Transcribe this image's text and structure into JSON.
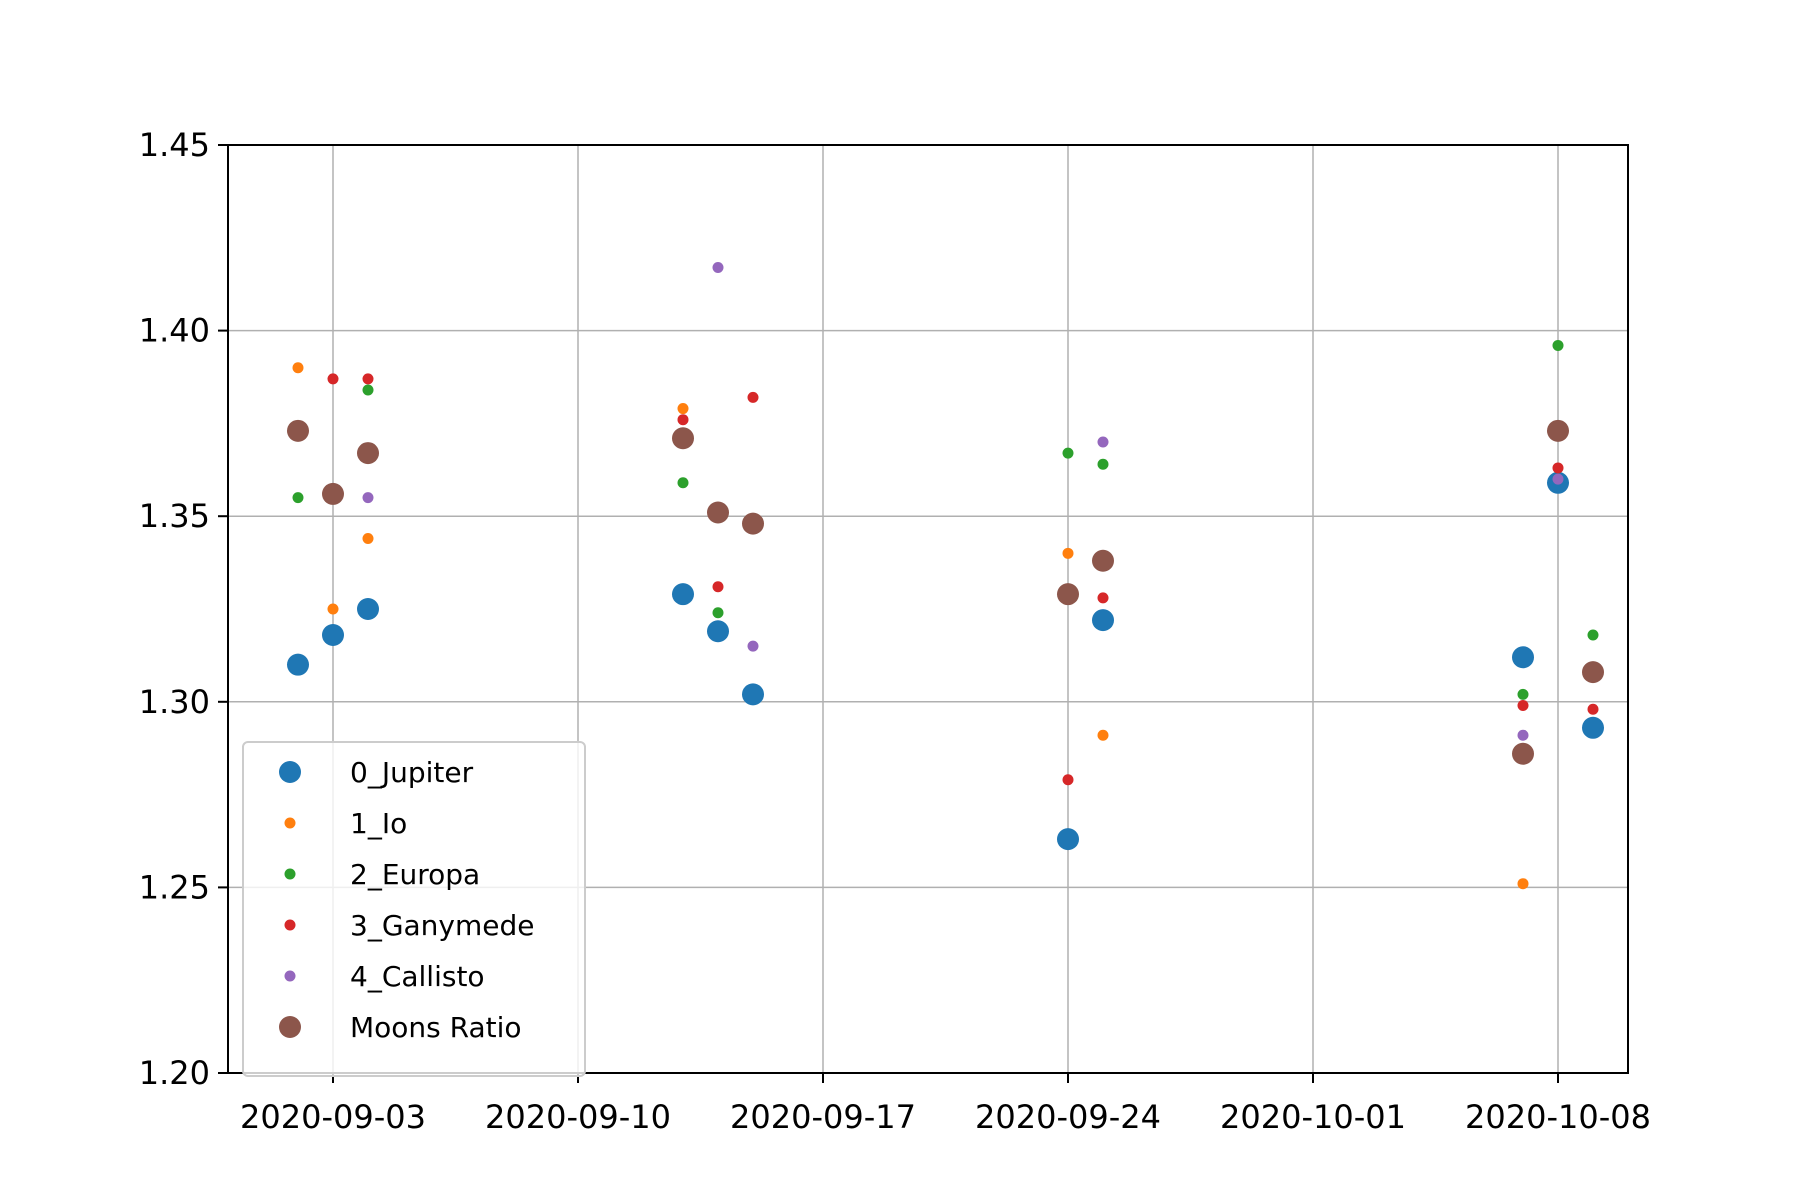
{
  "chart_data": {
    "type": "scatter",
    "title": "",
    "xlabel": "",
    "ylabel": "",
    "x_axis_type": "date",
    "xlim": [
      "2020-08-31",
      "2020-10-10"
    ],
    "ylim": [
      1.2,
      1.45
    ],
    "x_ticks": [
      "2020-09-03",
      "2020-09-10",
      "2020-09-17",
      "2020-09-24",
      "2020-10-01",
      "2020-10-08"
    ],
    "y_ticks": [
      "1.20",
      "1.25",
      "1.30",
      "1.35",
      "1.40",
      "1.45"
    ],
    "grid": true,
    "legend_position": "lower-left",
    "series": [
      {
        "name": "0_Jupiter",
        "color": "#1f77b4",
        "marker": "large-dot",
        "points": [
          {
            "x": "2020-09-02",
            "y": 1.31
          },
          {
            "x": "2020-09-03",
            "y": 1.318
          },
          {
            "x": "2020-09-04",
            "y": 1.325
          },
          {
            "x": "2020-09-13",
            "y": 1.329
          },
          {
            "x": "2020-09-14",
            "y": 1.319
          },
          {
            "x": "2020-09-15",
            "y": 1.302
          },
          {
            "x": "2020-09-24",
            "y": 1.263
          },
          {
            "x": "2020-09-25",
            "y": 1.322
          },
          {
            "x": "2020-10-07",
            "y": 1.312
          },
          {
            "x": "2020-10-08",
            "y": 1.359
          },
          {
            "x": "2020-10-09",
            "y": 1.293
          }
        ]
      },
      {
        "name": "1_Io",
        "color": "#ff7f0e",
        "marker": "small-dot",
        "points": [
          {
            "x": "2020-09-02",
            "y": 1.39
          },
          {
            "x": "2020-09-03",
            "y": 1.325
          },
          {
            "x": "2020-09-04",
            "y": 1.344
          },
          {
            "x": "2020-09-13",
            "y": 1.379
          },
          {
            "x": "2020-09-24",
            "y": 1.34
          },
          {
            "x": "2020-09-25",
            "y": 1.291
          },
          {
            "x": "2020-10-07",
            "y": 1.251
          }
        ]
      },
      {
        "name": "2_Europa",
        "color": "#2ca02c",
        "marker": "small-dot",
        "points": [
          {
            "x": "2020-09-02",
            "y": 1.355
          },
          {
            "x": "2020-09-04",
            "y": 1.384
          },
          {
            "x": "2020-09-13",
            "y": 1.359
          },
          {
            "x": "2020-09-14",
            "y": 1.324
          },
          {
            "x": "2020-09-24",
            "y": 1.367
          },
          {
            "x": "2020-09-25",
            "y": 1.364
          },
          {
            "x": "2020-10-07",
            "y": 1.302
          },
          {
            "x": "2020-10-08",
            "y": 1.396
          },
          {
            "x": "2020-10-09",
            "y": 1.318
          }
        ]
      },
      {
        "name": "3_Ganymede",
        "color": "#d62728",
        "marker": "small-dot",
        "points": [
          {
            "x": "2020-09-03",
            "y": 1.387
          },
          {
            "x": "2020-09-04",
            "y": 1.387
          },
          {
            "x": "2020-09-13",
            "y": 1.376
          },
          {
            "x": "2020-09-14",
            "y": 1.331
          },
          {
            "x": "2020-09-15",
            "y": 1.382
          },
          {
            "x": "2020-09-24",
            "y": 1.279
          },
          {
            "x": "2020-09-25",
            "y": 1.328
          },
          {
            "x": "2020-10-07",
            "y": 1.299
          },
          {
            "x": "2020-10-08",
            "y": 1.363
          },
          {
            "x": "2020-10-09",
            "y": 1.298
          }
        ]
      },
      {
        "name": "4_Callisto",
        "color": "#9467bd",
        "marker": "small-dot",
        "points": [
          {
            "x": "2020-09-04",
            "y": 1.355
          },
          {
            "x": "2020-09-14",
            "y": 1.417
          },
          {
            "x": "2020-09-15",
            "y": 1.315
          },
          {
            "x": "2020-09-25",
            "y": 1.37
          },
          {
            "x": "2020-10-07",
            "y": 1.291
          },
          {
            "x": "2020-10-08",
            "y": 1.36
          }
        ]
      },
      {
        "name": "Moons Ratio",
        "color": "#8c564b",
        "marker": "large-dot",
        "points": [
          {
            "x": "2020-09-02",
            "y": 1.373
          },
          {
            "x": "2020-09-03",
            "y": 1.356
          },
          {
            "x": "2020-09-04",
            "y": 1.367
          },
          {
            "x": "2020-09-13",
            "y": 1.371
          },
          {
            "x": "2020-09-14",
            "y": 1.351
          },
          {
            "x": "2020-09-15",
            "y": 1.348
          },
          {
            "x": "2020-09-24",
            "y": 1.329
          },
          {
            "x": "2020-09-25",
            "y": 1.338
          },
          {
            "x": "2020-10-07",
            "y": 1.286
          },
          {
            "x": "2020-10-08",
            "y": 1.373
          },
          {
            "x": "2020-10-09",
            "y": 1.308
          }
        ]
      }
    ]
  }
}
